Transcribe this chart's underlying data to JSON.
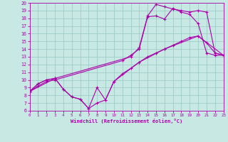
{
  "xlabel": "Windchill (Refroidissement éolien,°C)",
  "bg_color": "#c8e8e4",
  "line_color": "#aa00aa",
  "grid_color": "#a0ccc8",
  "xlim": [
    0,
    23
  ],
  "ylim": [
    6,
    20
  ],
  "xticks": [
    0,
    1,
    2,
    3,
    4,
    5,
    6,
    7,
    8,
    9,
    10,
    11,
    12,
    13,
    14,
    15,
    16,
    17,
    18,
    19,
    20,
    21,
    22,
    23
  ],
  "yticks": [
    6,
    7,
    8,
    9,
    10,
    11,
    12,
    13,
    14,
    15,
    16,
    17,
    18,
    19,
    20
  ],
  "series": [
    {
      "x": [
        0,
        1,
        2,
        3,
        12,
        13,
        14,
        15,
        16,
        17,
        18,
        19,
        20,
        21,
        22,
        23
      ],
      "y": [
        8.5,
        9.5,
        10.0,
        10.2,
        13.0,
        14.2,
        18.3,
        19.8,
        19.5,
        19.2,
        19.0,
        18.8,
        19.0,
        18.8,
        13.5,
        13.2
      ]
    },
    {
      "x": [
        0,
        1,
        2,
        3,
        11,
        12,
        13,
        14,
        15,
        16,
        17,
        18,
        19,
        20,
        21,
        22,
        23
      ],
      "y": [
        8.5,
        9.2,
        9.8,
        10.0,
        12.5,
        13.2,
        14.0,
        18.2,
        18.3,
        17.9,
        19.3,
        18.8,
        18.5,
        17.3,
        13.5,
        13.2,
        13.2
      ]
    },
    {
      "x": [
        0,
        1,
        2,
        3,
        4,
        5,
        6,
        7,
        8,
        9,
        10,
        11,
        12,
        13,
        14,
        15,
        16,
        17,
        18,
        19,
        20,
        21,
        22,
        23
      ],
      "y": [
        8.5,
        9.5,
        10.0,
        10.2,
        8.8,
        7.8,
        7.5,
        6.3,
        7.0,
        7.4,
        9.8,
        10.8,
        11.5,
        12.3,
        13.0,
        13.5,
        14.0,
        14.5,
        15.0,
        15.5,
        15.7,
        14.8,
        13.5,
        13.2
      ]
    },
    {
      "x": [
        0,
        3,
        4,
        5,
        6,
        7,
        8,
        9,
        10,
        13,
        16,
        20,
        23
      ],
      "y": [
        8.5,
        10.2,
        8.8,
        7.8,
        7.5,
        6.3,
        9.0,
        7.4,
        9.8,
        12.3,
        14.0,
        15.7,
        13.2
      ]
    }
  ]
}
